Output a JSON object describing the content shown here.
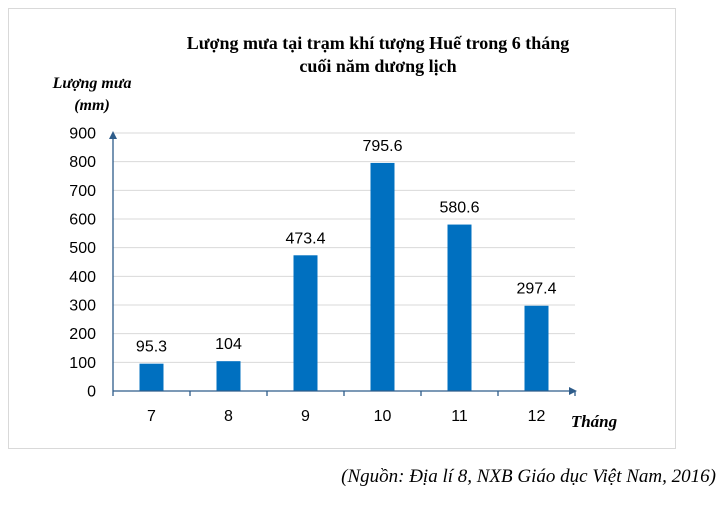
{
  "chart_data": {
    "type": "bar",
    "title_lines": [
      "Lượng mưa tại trạm khí tượng Huế trong 6 tháng",
      "cuối năm dương lịch"
    ],
    "ylabel_lines": [
      "Lượng mưa",
      "(mm)"
    ],
    "xlabel": "Tháng",
    "categories": [
      "7",
      "8",
      "9",
      "10",
      "11",
      "12"
    ],
    "values": [
      95.3,
      104,
      473.4,
      795.6,
      580.6,
      297.4
    ],
    "data_labels": [
      "95.3",
      "104",
      "473.4",
      "795.6",
      "580.6",
      "297.4"
    ],
    "ylim": [
      0,
      900
    ],
    "yticks": [
      0,
      100,
      200,
      300,
      400,
      500,
      600,
      700,
      800,
      900
    ],
    "grid": true,
    "bar_color": "#0070c0",
    "axis_color": "#2e5c8a",
    "grid_color": "#d9d9d9"
  },
  "source_note": "(Nguồn: Địa lí 8, NXB Giáo dục Việt Nam, 2016)"
}
